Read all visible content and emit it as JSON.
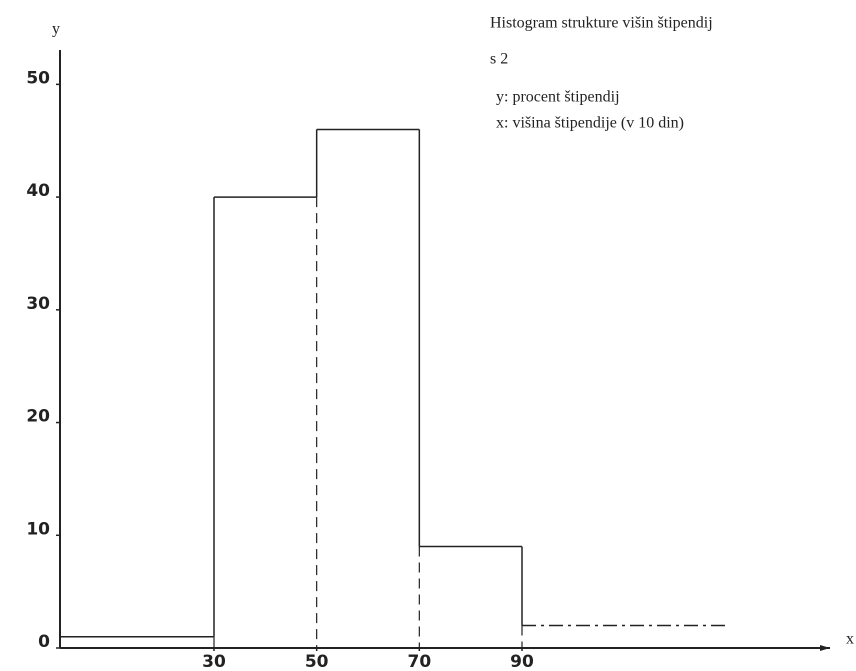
{
  "chart_data": {
    "type": "histogram",
    "title": "Histogram strukture višin štipendij",
    "subtitle": "s 2",
    "annotations": [
      "y: procent štipendij",
      "x: višina štipendije (v 10 din)"
    ],
    "x_label": "x",
    "y_label": "y",
    "bins": [
      0,
      30,
      50,
      70,
      90,
      130
    ],
    "values": [
      1,
      40,
      46,
      9,
      2
    ],
    "color": "#222222",
    "xlim": [
      0,
      150
    ],
    "ylim": [
      0,
      55
    ],
    "xticks": [
      30,
      50,
      70,
      90
    ],
    "yticks": [
      0,
      10,
      20,
      30,
      40,
      50
    ]
  }
}
